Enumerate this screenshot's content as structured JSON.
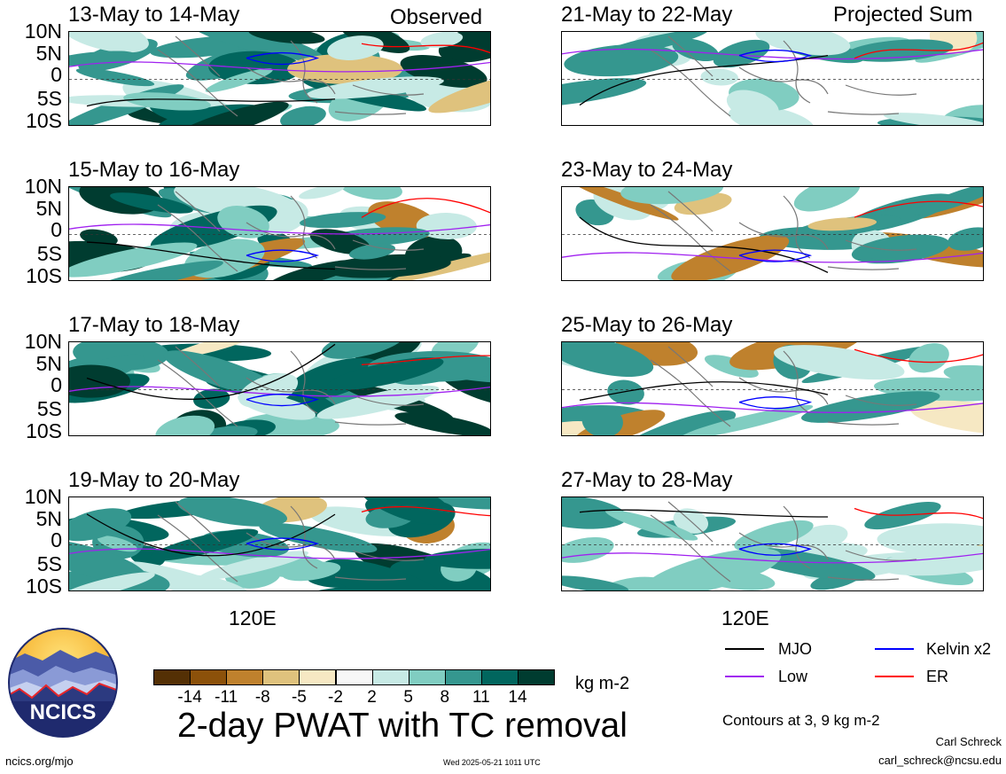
{
  "left_header": "Observed",
  "right_header": "Projected Sum",
  "lat_labels": [
    "10N",
    "5N",
    "0",
    "5S",
    "10S"
  ],
  "lon_label": "120E",
  "panels_left": [
    {
      "title": "13-May to 14-May"
    },
    {
      "title": "15-May to 16-May"
    },
    {
      "title": "17-May to 18-May"
    },
    {
      "title": "19-May to 20-May"
    }
  ],
  "panels_right": [
    {
      "title": "21-May to 22-May"
    },
    {
      "title": "23-May to 24-May"
    },
    {
      "title": "25-May to 26-May"
    },
    {
      "title": "27-May to 28-May"
    }
  ],
  "colorbar": {
    "colors": [
      "#543005",
      "#8c510a",
      "#bf812d",
      "#dfc27d",
      "#f6e8c3",
      "#f7f7f7",
      "#c7eae5",
      "#80cdc1",
      "#35978f",
      "#01665e",
      "#003c30"
    ],
    "labels": [
      "-14",
      "-11",
      "-8",
      "-5",
      "-2",
      "2",
      "5",
      "8",
      "11",
      "14"
    ],
    "unit": "kg m-2"
  },
  "main_title": "2-day PWAT with TC removal",
  "legend": {
    "items": [
      {
        "label": "MJO",
        "color": "#000000"
      },
      {
        "label": "Kelvin x2",
        "color": "#0000ff"
      },
      {
        "label": "Low",
        "color": "#a020f0"
      },
      {
        "label": "ER",
        "color": "#ff0000"
      }
    ],
    "contours_note": "Contours at 3, 9 kg m-2"
  },
  "logo_text": "NCICS",
  "footer": {
    "left": "ncics.org/mjo",
    "center": "Wed 2025-05-21 1011 UTC",
    "right_name": "Carl Schreck",
    "right_email": "carl_schreck@ncsu.edu"
  }
}
